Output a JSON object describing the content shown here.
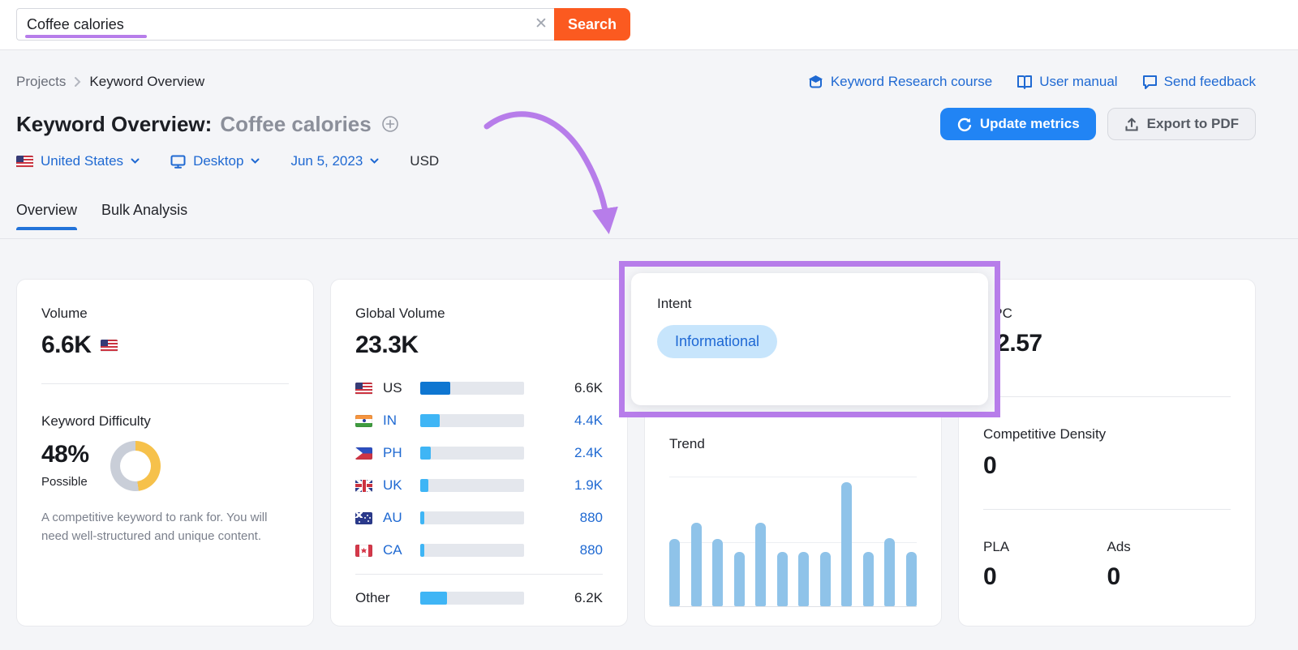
{
  "search": {
    "value": "Coffee calories",
    "clear_label": "✕",
    "button_label": "Search"
  },
  "breadcrumb": {
    "root": "Projects",
    "current": "Keyword Overview"
  },
  "header_links": [
    {
      "label": "Keyword Research course",
      "icon": "graduation-cap"
    },
    {
      "label": "User manual",
      "icon": "book"
    },
    {
      "label": "Send feedback",
      "icon": "chat-bubble"
    }
  ],
  "title": {
    "prefix": "Keyword Overview:",
    "keyword": "Coffee calories"
  },
  "actions": {
    "update_label": "Update metrics",
    "export_label": "Export to PDF"
  },
  "filters": {
    "location": "United States",
    "device": "Desktop",
    "date": "Jun 5, 2023",
    "currency": "USD"
  },
  "tabs": [
    {
      "label": "Overview",
      "active": true
    },
    {
      "label": "Bulk Analysis",
      "active": false
    }
  ],
  "cards": {
    "volume": {
      "label": "Volume",
      "value": "6.6K",
      "flag": "us"
    },
    "difficulty": {
      "label": "Keyword Difficulty",
      "value": "48%",
      "percent": 48,
      "tag": "Possible",
      "description": "A competitive keyword to rank for. You will need well-structured and unique content."
    },
    "global_volume": {
      "label": "Global Volume",
      "value": "23.3K",
      "rows": [
        {
          "country": "US",
          "flag": "us",
          "value": "6.6K",
          "percent": 29,
          "highlight": true
        },
        {
          "country": "IN",
          "flag": "in",
          "value": "4.4K",
          "percent": 19,
          "highlight": false
        },
        {
          "country": "PH",
          "flag": "ph",
          "value": "2.4K",
          "percent": 10,
          "highlight": false
        },
        {
          "country": "UK",
          "flag": "uk",
          "value": "1.9K",
          "percent": 8,
          "highlight": false
        },
        {
          "country": "AU",
          "flag": "au",
          "value": "880",
          "percent": 4,
          "highlight": false
        },
        {
          "country": "CA",
          "flag": "ca",
          "value": "880",
          "percent": 4,
          "highlight": false
        }
      ],
      "other": {
        "label": "Other",
        "value": "6.2K",
        "percent": 26
      }
    },
    "intent": {
      "label": "Intent",
      "badge": "Informational"
    },
    "trend": {
      "label": "Trend",
      "bars_percent": [
        52,
        65,
        52,
        42,
        65,
        42,
        42,
        42,
        96,
        42,
        53,
        42
      ]
    },
    "cpc": {
      "label": "CPC",
      "value": "$2.57"
    },
    "competitive_density": {
      "label": "Competitive Density",
      "value": "0"
    },
    "pla": {
      "label": "PLA",
      "value": "0"
    },
    "ads": {
      "label": "Ads",
      "value": "0"
    }
  },
  "colors": {
    "accent_orange": "#fb5a20",
    "link_blue": "#1f69d2",
    "button_blue": "#2184f4",
    "annotation_purple": "#b77dea",
    "bar_dark_blue": "#0e76d1",
    "bar_light_blue": "#3fb5f5",
    "trend_bar_blue": "#8fc3e9",
    "donut_yellow": "#f6c14b",
    "donut_gray": "#c9ced8",
    "intent_pill_bg": "#c7e5fc",
    "intent_pill_text": "#1e68d4"
  }
}
